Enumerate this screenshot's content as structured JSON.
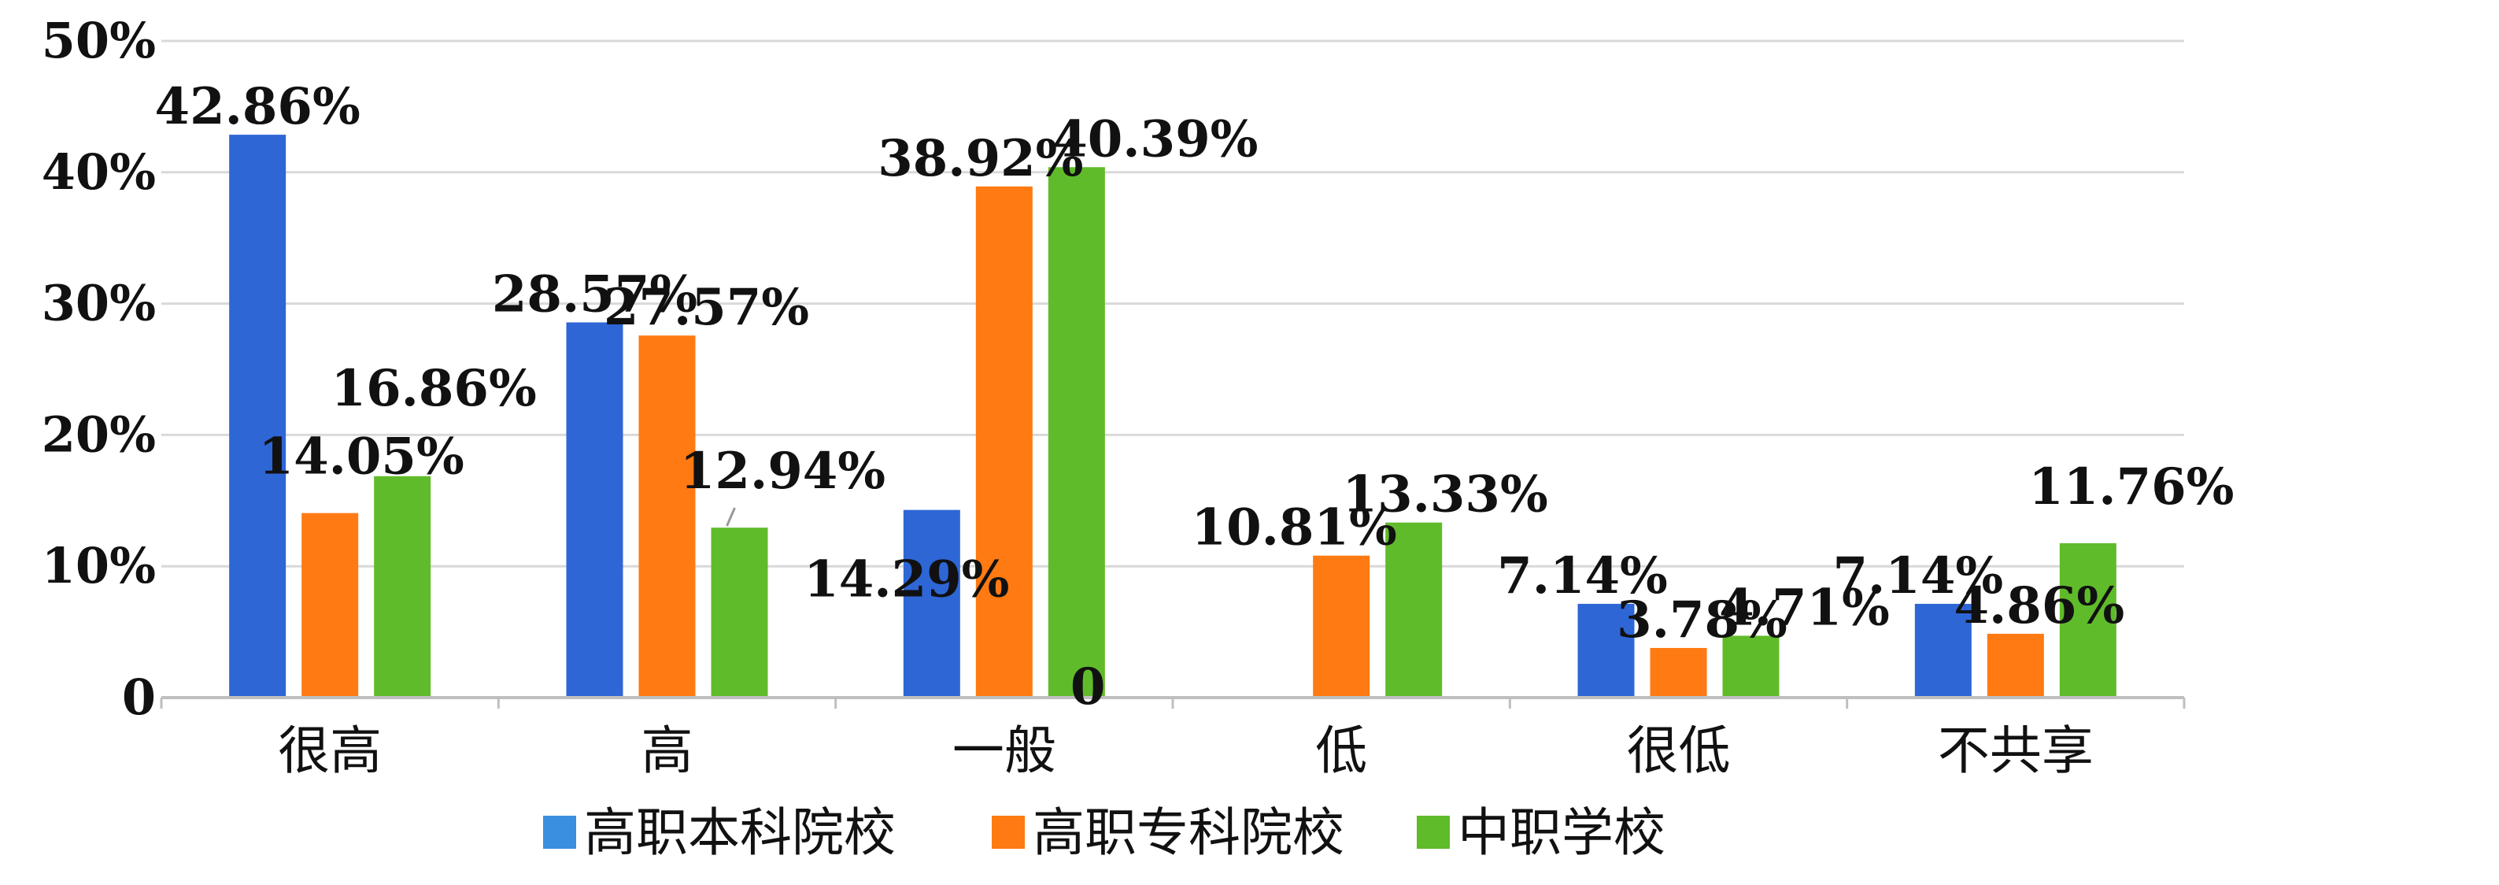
{
  "chart_data": {
    "type": "bar",
    "categories": [
      "很高",
      "高",
      "一般",
      "低",
      "很低",
      "不共享"
    ],
    "series": [
      {
        "name": "高职本科院校",
        "color": "#2e66d6",
        "values": [
          42.86,
          28.57,
          14.29,
          0,
          7.14,
          7.14
        ],
        "labels": [
          "42.86%",
          "28.57%",
          "14.29%",
          "0",
          "7.14%",
          "7.14%"
        ]
      },
      {
        "name": "高职专科院校",
        "color": "#ff7a12",
        "values": [
          14.05,
          27.57,
          38.92,
          10.81,
          3.78,
          4.86
        ],
        "labels": [
          "14.05%",
          "27.57%",
          "38.92%",
          "10.81%",
          "3.78%",
          "4.86%"
        ]
      },
      {
        "name": "中职学校",
        "color": "#60bb2a",
        "values": [
          16.86,
          12.94,
          40.39,
          13.33,
          4.71,
          11.76
        ],
        "labels": [
          "16.86%",
          "12.94%",
          "40.39%",
          "13.33%",
          "4.71%",
          "11.76%"
        ]
      }
    ],
    "y_ticks": [
      "0",
      "10%",
      "20%",
      "30%",
      "40%",
      "50%"
    ],
    "ylim": [
      0,
      50
    ],
    "grid": true,
    "legend_position": "bottom",
    "title": "",
    "xlabel": "",
    "ylabel": ""
  },
  "legend_swatch_color": "#3a8fe0",
  "grid_color": "#d9d9d9"
}
